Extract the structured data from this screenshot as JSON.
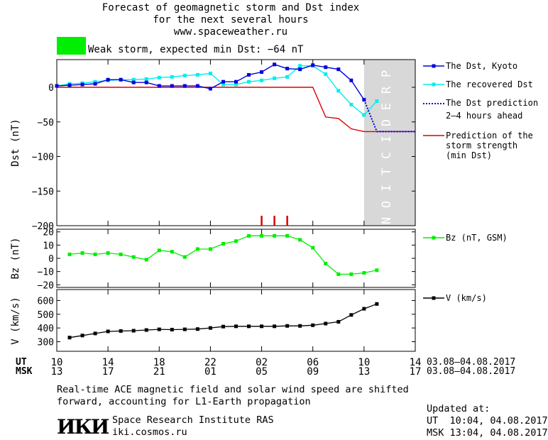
{
  "header": {
    "title_line1": "Forecast of geomagnetic storm and Dst index",
    "title_line2": "for the next several hours",
    "title_line3": "www.spaceweather.ru",
    "storm_text": "Weak storm, expected min Dst: −64 nT",
    "storm_color": "#00ee00"
  },
  "colors": {
    "dst_kyoto": "#0000dd",
    "dst_recovered": "#00eeee",
    "prediction": "#dd0000",
    "bz": "#00ee00",
    "v": "#000000",
    "prediction_band": "#d8d8d8",
    "prediction_text": "#ffffff"
  },
  "legend": {
    "dst_kyoto": "The Dst, Kyoto",
    "dst_recovered": "The recovered Dst",
    "dst_pred_line1": "The Dst prediction",
    "dst_pred_line2": "2–4 hours ahead",
    "storm_line1": "Prediction of the",
    "storm_line2": "storm strength",
    "storm_line3": "(min Dst)",
    "bz": "Bz (nT, GSM)",
    "v": "V (km/s)"
  },
  "prediction_label": "PREDICTION",
  "chart_data": {
    "type": "line",
    "x_axis": {
      "ut_label": "UT",
      "msk_label": "MSK",
      "ut_ticks": [
        "10",
        "14",
        "18",
        "22",
        "02",
        "06",
        "10",
        "14"
      ],
      "msk_ticks": [
        "13",
        "17",
        "21",
        "01",
        "05",
        "09",
        "13",
        "17"
      ],
      "date_range_ut": "03.08–04.08.2017",
      "date_range_msk": "03.08–04.08.2017",
      "xlim": [
        10,
        38
      ],
      "tick_hours": [
        10,
        14,
        18,
        22,
        26,
        30,
        34,
        38
      ],
      "prediction_start": 34
    },
    "panels": {
      "dst": {
        "ylabel": "Dst (nT)",
        "ylim": [
          -200,
          40
        ],
        "yticks": [
          0,
          -50,
          -100,
          -150,
          -200
        ],
        "ytick_labels": [
          "0",
          "−50",
          "−100",
          "−150",
          "−200"
        ],
        "series": [
          {
            "name": "The Dst, Kyoto",
            "x": [
              10,
              11,
              12,
              13,
              14,
              15,
              16,
              17,
              18,
              19,
              20,
              21,
              22,
              23,
              24,
              25,
              26,
              27,
              28,
              29,
              30,
              31,
              32,
              33,
              34
            ],
            "y": [
              2,
              3,
              4,
              5,
              11,
              11,
              7,
              7,
              2,
              2,
              2,
              2,
              -2,
              8,
              8,
              18,
              22,
              33,
              27,
              26,
              32,
              29,
              26,
              10,
              -18
            ]
          },
          {
            "name": "The recovered Dst",
            "x": [
              10,
              11,
              12,
              13,
              14,
              15,
              16,
              17,
              18,
              19,
              20,
              21,
              22,
              23,
              24,
              25,
              26,
              27,
              28,
              29,
              30,
              31,
              32,
              33,
              34,
              35
            ],
            "y": [
              2,
              5,
              6,
              8,
              10,
              11,
              11,
              12,
              14,
              15,
              17,
              18,
              20,
              4,
              4,
              8,
              10,
              13,
              15,
              31,
              31,
              19,
              -5,
              -25,
              -40,
              -20
            ]
          },
          {
            "name": "The Dst prediction 2–4 hours ahead",
            "x": [
              34,
              35,
              36,
              37,
              38
            ],
            "y": [
              -18,
              -64,
              -64,
              -64,
              -64
            ]
          },
          {
            "name": "Prediction of the storm strength (min Dst)",
            "x": [
              10,
              30,
              31,
              32,
              33,
              34,
              38
            ],
            "y": [
              0,
              0,
              -43,
              -45,
              -60,
              -64,
              -64
            ]
          }
        ],
        "markers_x": [
          26,
          27,
          28
        ]
      },
      "bz": {
        "ylabel": "Bz (nT)",
        "ylim": [
          -22,
          22
        ],
        "yticks": [
          20,
          10,
          0,
          -10,
          -20
        ],
        "ytick_labels": [
          "20",
          "10",
          "0",
          "−10",
          "−20"
        ],
        "series": [
          {
            "name": "Bz (nT, GSM)",
            "x": [
              11,
              12,
              13,
              14,
              15,
              16,
              17,
              18,
              19,
              20,
              21,
              22,
              23,
              24,
              25,
              26,
              27,
              28,
              29,
              30,
              31,
              32,
              33,
              34,
              35
            ],
            "y": [
              3,
              4,
              3,
              4,
              3,
              1,
              -1,
              6,
              5,
              1,
              7,
              7,
              11,
              13,
              17,
              17,
              17,
              17,
              14,
              8,
              -4,
              -12,
              -12,
              -11,
              -9
            ]
          }
        ]
      },
      "v": {
        "ylabel": "V (km/s)",
        "ylim": [
          230,
          680
        ],
        "yticks": [
          600,
          500,
          400,
          300
        ],
        "ytick_labels": [
          "600",
          "500",
          "400",
          "300"
        ],
        "series": [
          {
            "name": "V (km/s)",
            "x": [
              11,
              12,
              13,
              14,
              15,
              16,
              17,
              18,
              19,
              20,
              21,
              22,
              23,
              24,
              25,
              26,
              27,
              28,
              29,
              30,
              31,
              32,
              33,
              34,
              35
            ],
            "y": [
              330,
              345,
              360,
              375,
              378,
              380,
              385,
              390,
              388,
              390,
              392,
              400,
              410,
              412,
              412,
              412,
              412,
              415,
              415,
              420,
              432,
              445,
              495,
              540,
              575
            ]
          }
        ]
      }
    }
  },
  "footer": {
    "note_line1": "Real-time ACE magnetic field and solar wind speed are shifted",
    "note_line2": "forward, accounting for L1-Earth propagation",
    "institute_name": "Space Research Institute RAS",
    "institute_url": "iki.cosmos.ru",
    "logo_text": "ИКИ",
    "updated_label": "Updated at:",
    "updated_ut": "UT  10:04, 04.08.2017",
    "updated_msk": "MSK 13:04, 04.08.2017"
  }
}
